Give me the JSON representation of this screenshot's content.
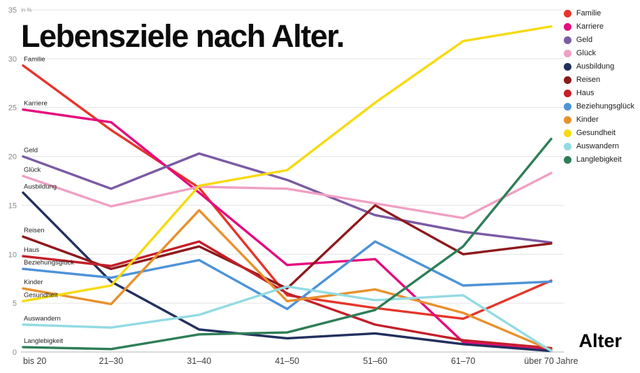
{
  "title": "Lebensziele nach Alter.",
  "axis": {
    "unit_label": "in %",
    "x_label": "Alter",
    "y_ticks": [
      0,
      5,
      10,
      15,
      20,
      25,
      30,
      35
    ]
  },
  "chart_data": {
    "type": "line",
    "title": "Lebensziele nach Alter.",
    "xlabel": "Alter",
    "ylabel": "in %",
    "ylim": [
      0,
      35
    ],
    "grid": true,
    "legend_position": "top-right",
    "categories": [
      "bis 20",
      "21–30",
      "31–40",
      "41–50",
      "51–60",
      "61–70",
      "über 70 Jahre"
    ],
    "series": [
      {
        "name": "Familie",
        "color": "#e6352a",
        "values": [
          29.3,
          22.7,
          16.8,
          5.8,
          4.5,
          3.4,
          7.3
        ]
      },
      {
        "name": "Karriere",
        "color": "#e50c7e",
        "values": [
          24.8,
          23.5,
          16.3,
          8.9,
          9.5,
          1.0,
          0.3
        ]
      },
      {
        "name": "Geld",
        "color": "#7b5aa4",
        "values": [
          20.0,
          16.7,
          20.3,
          17.6,
          14.0,
          12.3,
          11.2
        ]
      },
      {
        "name": "Glück",
        "color": "#f0a0c4",
        "values": [
          18.0,
          14.9,
          16.9,
          16.7,
          15.2,
          13.7,
          18.3
        ]
      },
      {
        "name": "Ausbildung",
        "color": "#22305f",
        "values": [
          16.3,
          7.2,
          2.3,
          1.4,
          1.9,
          0.8,
          0.1
        ]
      },
      {
        "name": "Reisen",
        "color": "#8e191c",
        "values": [
          11.8,
          8.5,
          10.8,
          6.5,
          15.0,
          10.0,
          11.1
        ]
      },
      {
        "name": "Haus",
        "color": "#c3202a",
        "values": [
          9.8,
          8.8,
          11.3,
          6.0,
          2.8,
          1.2,
          0.4
        ]
      },
      {
        "name": "Beziehungsglück",
        "color": "#4e93d8",
        "values": [
          8.5,
          7.6,
          9.4,
          4.4,
          11.3,
          6.8,
          7.2
        ]
      },
      {
        "name": "Kinder",
        "color": "#e8912d",
        "values": [
          6.5,
          4.9,
          14.5,
          5.2,
          6.4,
          4.0,
          0.2
        ]
      },
      {
        "name": "Gesundheit",
        "color": "#f7da10",
        "values": [
          5.2,
          6.8,
          17.0,
          18.6,
          25.5,
          31.8,
          33.3
        ]
      },
      {
        "name": "Auswandern",
        "color": "#93dbe3",
        "values": [
          2.8,
          2.5,
          3.8,
          6.7,
          5.3,
          5.8,
          0.1
        ]
      },
      {
        "name": "Langlebigkeit",
        "color": "#2f7e57",
        "values": [
          0.5,
          0.3,
          1.8,
          2.0,
          4.3,
          10.8,
          21.8
        ]
      }
    ]
  }
}
